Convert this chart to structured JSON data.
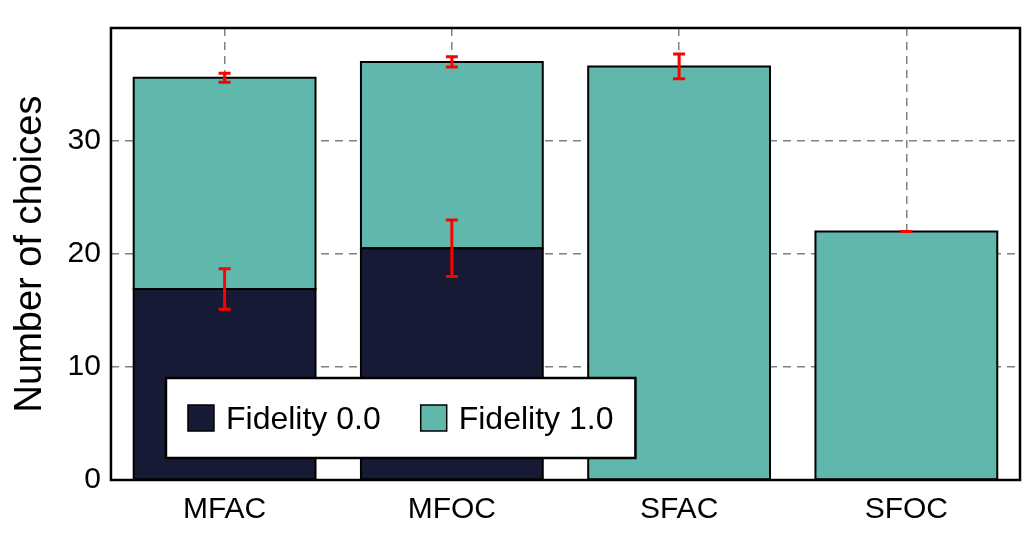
{
  "chart_data": {
    "type": "bar",
    "ylabel": "Number of choices",
    "categories": [
      "MFAC",
      "MFOC",
      "SFAC",
      "SFOC"
    ],
    "stacked": true,
    "series": [
      {
        "name": "Fidelity 0.0",
        "color": "#161a35",
        "values": [
          16.9,
          20.5,
          null,
          null
        ],
        "errors": [
          1.8,
          2.5,
          null,
          null
        ]
      },
      {
        "name": "Fidelity 1.0",
        "color": "#5fb8ab",
        "values": [
          18.7,
          16.5,
          36.6,
          22.0
        ],
        "errors": [
          0.4,
          0.45,
          1.1,
          0
        ]
      }
    ],
    "ylim": [
      0,
      40
    ],
    "yticks": [
      0,
      10,
      20,
      30
    ],
    "grid": true,
    "legend": "bottom left"
  }
}
